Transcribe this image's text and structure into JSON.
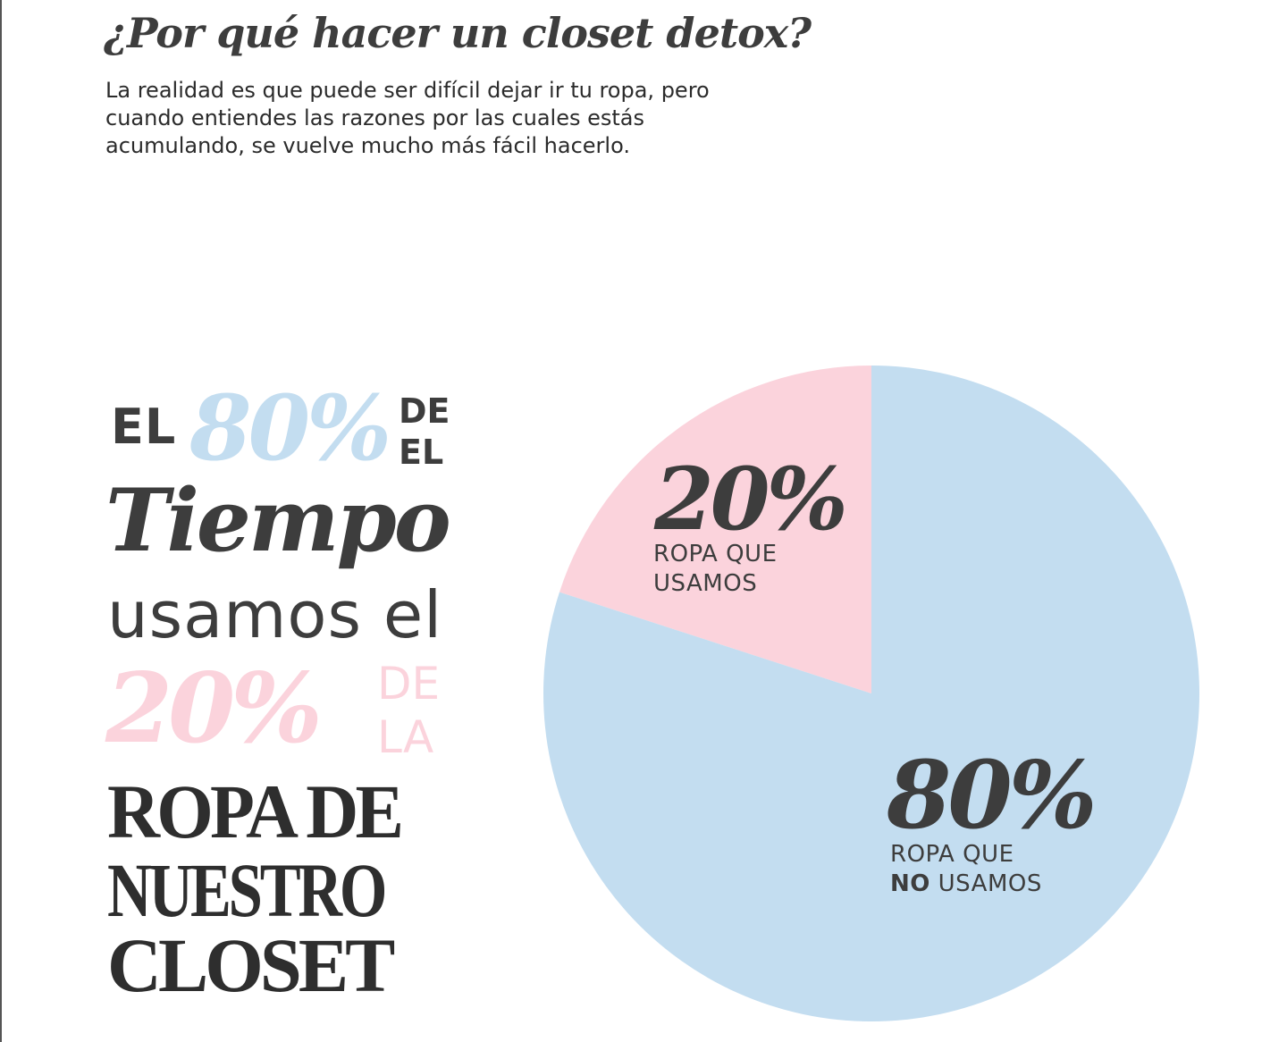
{
  "title": "¿Por qué hacer un closet detox?",
  "intro": {
    "line1": "La realidad es que puede ser difícil dejar ir tu ropa, pero",
    "line2": "cuando entiendes las razones por las cuales estás",
    "line3": "acumulando, se vuelve mucho más fácil hacerlo."
  },
  "headline": {
    "el": "EL",
    "pct80": "80%",
    "de1": "DE",
    "el2": "EL",
    "tiempo": "Tiempo",
    "usamos": "usamos el",
    "pct20": "20%",
    "de2": "DE",
    "la": "LA",
    "ropa_de": "ROPA DE",
    "nuestro": "NUESTRO",
    "closet": "CLOSET"
  },
  "colors": {
    "blue": "#c3ddf0",
    "pink": "#fbd3dc",
    "text": "#3d3d3d"
  },
  "chart_data": {
    "type": "pie",
    "start_angle_deg": 0,
    "direction": "counterclockwise",
    "slices": [
      {
        "value": 20,
        "percent_label": "20%",
        "label_line1": "ROPA QUE",
        "label_line2_bold": "",
        "label_line2": "USAMOS",
        "color": "#fbd3dc"
      },
      {
        "value": 80,
        "percent_label": "80%",
        "label_line1": "ROPA QUE",
        "label_line2_bold": "NO",
        "label_line2": " USAMOS",
        "color": "#c3ddf0"
      }
    ]
  }
}
